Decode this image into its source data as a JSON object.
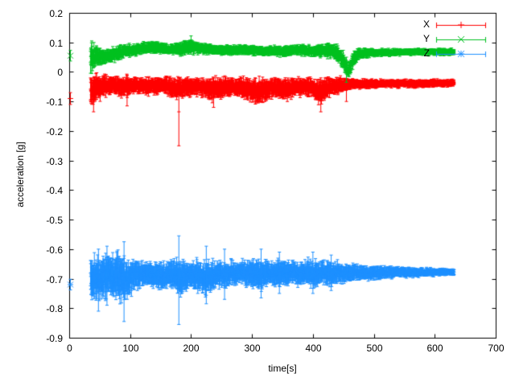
{
  "chart_data": {
    "type": "line",
    "style": "errorbars",
    "title": "",
    "xlabel": "time[s]",
    "ylabel": "acceleration [g]",
    "xlim": [
      0,
      700
    ],
    "ylim": [
      -0.9,
      0.2
    ],
    "xticks": [
      0,
      100,
      200,
      300,
      400,
      500,
      600,
      700
    ],
    "yticks": [
      0.2,
      0.1,
      0,
      -0.1,
      -0.2,
      -0.3,
      -0.4,
      -0.5,
      -0.6,
      -0.7,
      -0.8,
      -0.9
    ],
    "grid": false,
    "background_color": "#ffffff",
    "axis_color": "#000000",
    "legend": {
      "position": "top-right",
      "entries": [
        "X",
        "Y",
        "Z"
      ]
    },
    "series": [
      {
        "name": "X",
        "color": "#ff0000",
        "marker": "plus",
        "seed": 42,
        "range": [
          35,
          632
        ],
        "isolated_points": [
          [
            2,
            -0.09,
            0.02
          ]
        ],
        "profile": [
          [
            35,
            -0.06,
            0.05
          ],
          [
            50,
            -0.05,
            0.04
          ],
          [
            70,
            -0.045,
            0.028
          ],
          [
            90,
            -0.05,
            0.032
          ],
          [
            110,
            -0.045,
            0.025
          ],
          [
            130,
            -0.05,
            0.028
          ],
          [
            155,
            -0.045,
            0.025
          ],
          [
            175,
            -0.055,
            0.035
          ],
          [
            195,
            -0.05,
            0.03
          ],
          [
            215,
            -0.05,
            0.028
          ],
          [
            235,
            -0.06,
            0.038
          ],
          [
            255,
            -0.05,
            0.03
          ],
          [
            275,
            -0.05,
            0.028
          ],
          [
            295,
            -0.06,
            0.038
          ],
          [
            315,
            -0.065,
            0.04
          ],
          [
            335,
            -0.05,
            0.03
          ],
          [
            355,
            -0.06,
            0.035
          ],
          [
            375,
            -0.05,
            0.028
          ],
          [
            395,
            -0.05,
            0.03
          ],
          [
            410,
            -0.07,
            0.042
          ],
          [
            425,
            -0.05,
            0.03
          ],
          [
            445,
            -0.045,
            0.025
          ],
          [
            465,
            -0.04,
            0.016
          ],
          [
            520,
            -0.04,
            0.013
          ],
          [
            632,
            -0.038,
            0.012
          ]
        ],
        "spikes": [
          [
            40,
            -0.135,
            -0.02
          ],
          [
            95,
            -0.115,
            -0.01
          ],
          [
            180,
            -0.25,
            -0.02
          ],
          [
            237,
            -0.12,
            -0.02
          ],
          [
            413,
            -0.135,
            -0.02
          ],
          [
            455,
            -0.1,
            0.0
          ]
        ]
      },
      {
        "name": "Y",
        "color": "#00c020",
        "marker": "cross",
        "seed": 1337,
        "range": [
          35,
          632
        ],
        "isolated_points": [
          [
            2,
            0.055,
            0.018
          ]
        ],
        "profile": [
          [
            35,
            0.05,
            0.05
          ],
          [
            45,
            0.055,
            0.035
          ],
          [
            60,
            0.05,
            0.022
          ],
          [
            75,
            0.06,
            0.026
          ],
          [
            90,
            0.07,
            0.022
          ],
          [
            110,
            0.075,
            0.018
          ],
          [
            130,
            0.082,
            0.02
          ],
          [
            150,
            0.085,
            0.018
          ],
          [
            165,
            0.075,
            0.016
          ],
          [
            185,
            0.08,
            0.022
          ],
          [
            200,
            0.09,
            0.026
          ],
          [
            215,
            0.08,
            0.018
          ],
          [
            240,
            0.075,
            0.016
          ],
          [
            280,
            0.075,
            0.016
          ],
          [
            320,
            0.072,
            0.016
          ],
          [
            350,
            0.07,
            0.016
          ],
          [
            380,
            0.075,
            0.018
          ],
          [
            400,
            0.07,
            0.018
          ],
          [
            420,
            0.074,
            0.022
          ],
          [
            438,
            0.07,
            0.026
          ],
          [
            450,
            0.035,
            0.03
          ],
          [
            458,
            0.002,
            0.025
          ],
          [
            466,
            0.04,
            0.025
          ],
          [
            474,
            0.062,
            0.018
          ],
          [
            500,
            0.065,
            0.013
          ],
          [
            560,
            0.068,
            0.011
          ],
          [
            632,
            0.068,
            0.011
          ]
        ],
        "spikes": [
          [
            37,
            -0.005,
            0.105
          ],
          [
            200,
            0.06,
            0.122
          ],
          [
            455,
            -0.035,
            0.05
          ]
        ]
      },
      {
        "name": "Z",
        "color": "#1e90ff",
        "marker": "star",
        "seed": 2024,
        "range": [
          35,
          632
        ],
        "isolated_points": [
          [
            2,
            -0.72,
            0.018
          ]
        ],
        "profile": [
          [
            35,
            -0.7,
            0.065
          ],
          [
            50,
            -0.7,
            0.075
          ],
          [
            65,
            -0.69,
            0.07
          ],
          [
            80,
            -0.695,
            0.075
          ],
          [
            95,
            -0.7,
            0.065
          ],
          [
            110,
            -0.685,
            0.045
          ],
          [
            130,
            -0.683,
            0.038
          ],
          [
            150,
            -0.69,
            0.042
          ],
          [
            168,
            -0.685,
            0.045
          ],
          [
            180,
            -0.69,
            0.068
          ],
          [
            192,
            -0.685,
            0.045
          ],
          [
            210,
            -0.69,
            0.05
          ],
          [
            225,
            -0.7,
            0.055
          ],
          [
            240,
            -0.685,
            0.045
          ],
          [
            260,
            -0.685,
            0.04
          ],
          [
            280,
            -0.68,
            0.036
          ],
          [
            300,
            -0.685,
            0.045
          ],
          [
            315,
            -0.69,
            0.05
          ],
          [
            330,
            -0.68,
            0.036
          ],
          [
            345,
            -0.685,
            0.045
          ],
          [
            365,
            -0.68,
            0.036
          ],
          [
            385,
            -0.68,
            0.04
          ],
          [
            400,
            -0.685,
            0.045
          ],
          [
            415,
            -0.68,
            0.036
          ],
          [
            430,
            -0.683,
            0.04
          ],
          [
            450,
            -0.68,
            0.03
          ],
          [
            480,
            -0.68,
            0.025
          ],
          [
            520,
            -0.679,
            0.02
          ],
          [
            560,
            -0.678,
            0.016
          ],
          [
            600,
            -0.678,
            0.012
          ],
          [
            632,
            -0.678,
            0.011
          ]
        ],
        "spikes": [
          [
            48,
            -0.81,
            -0.6
          ],
          [
            62,
            -0.79,
            -0.59
          ],
          [
            90,
            -0.845,
            -0.575
          ],
          [
            180,
            -0.855,
            -0.555
          ],
          [
            225,
            -0.785,
            -0.59
          ],
          [
            255,
            -0.77,
            -0.6
          ],
          [
            315,
            -0.765,
            -0.6
          ],
          [
            345,
            -0.75,
            -0.61
          ],
          [
            400,
            -0.75,
            -0.61
          ],
          [
            430,
            -0.74,
            -0.62
          ]
        ]
      }
    ]
  }
}
